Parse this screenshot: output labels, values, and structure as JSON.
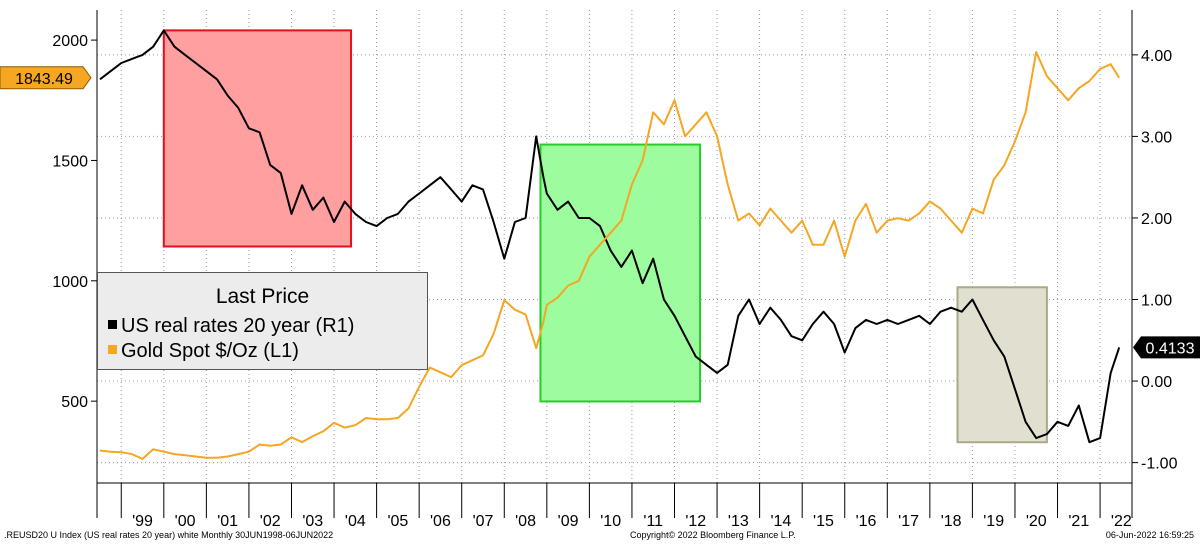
{
  "chart_data": {
    "type": "line",
    "series": [
      {
        "name": "US real rates 20 year",
        "axis": "right",
        "color": "#000000",
        "x": [
          1998.5,
          1998.75,
          1999.0,
          1999.25,
          1999.5,
          1999.75,
          2000.0,
          2000.25,
          2000.5,
          2000.75,
          2001.0,
          2001.25,
          2001.5,
          2001.75,
          2002.0,
          2002.25,
          2002.5,
          2002.75,
          2003.0,
          2003.25,
          2003.5,
          2003.75,
          2004.0,
          2004.25,
          2004.5,
          2004.75,
          2005.0,
          2005.25,
          2005.5,
          2005.75,
          2006.0,
          2006.25,
          2006.5,
          2006.75,
          2007.0,
          2007.25,
          2007.5,
          2007.75,
          2008.0,
          2008.25,
          2008.5,
          2008.75,
          2008.92,
          2009.0,
          2009.25,
          2009.5,
          2009.75,
          2010.0,
          2010.25,
          2010.5,
          2010.75,
          2011.0,
          2011.25,
          2011.5,
          2011.75,
          2012.0,
          2012.25,
          2012.5,
          2012.75,
          2013.0,
          2013.25,
          2013.5,
          2013.75,
          2014.0,
          2014.25,
          2014.5,
          2014.75,
          2015.0,
          2015.25,
          2015.5,
          2015.75,
          2016.0,
          2016.25,
          2016.5,
          2016.75,
          2017.0,
          2017.25,
          2017.5,
          2017.75,
          2018.0,
          2018.25,
          2018.5,
          2018.75,
          2019.0,
          2019.25,
          2019.5,
          2019.75,
          2020.0,
          2020.25,
          2020.5,
          2020.75,
          2021.0,
          2021.25,
          2021.5,
          2021.75,
          2022.0,
          2022.25,
          2022.45
        ],
        "values": [
          3.7,
          3.8,
          3.9,
          3.95,
          4.0,
          4.1,
          4.3,
          4.1,
          4.0,
          3.9,
          3.8,
          3.7,
          3.5,
          3.35,
          3.1,
          3.05,
          2.65,
          2.55,
          2.05,
          2.4,
          2.1,
          2.25,
          1.95,
          2.2,
          2.05,
          1.95,
          1.9,
          2.0,
          2.05,
          2.2,
          2.3,
          2.4,
          2.5,
          2.35,
          2.2,
          2.4,
          2.35,
          1.95,
          1.5,
          1.95,
          2.0,
          3.0,
          2.5,
          2.3,
          2.1,
          2.2,
          2.0,
          2.0,
          1.9,
          1.6,
          1.4,
          1.6,
          1.2,
          1.5,
          1.0,
          0.8,
          0.55,
          0.3,
          0.2,
          0.1,
          0.2,
          0.8,
          1.0,
          0.7,
          0.9,
          0.75,
          0.55,
          0.5,
          0.7,
          0.85,
          0.7,
          0.35,
          0.65,
          0.75,
          0.7,
          0.75,
          0.7,
          0.75,
          0.8,
          0.7,
          0.85,
          0.9,
          0.85,
          1.0,
          0.75,
          0.5,
          0.3,
          -0.1,
          -0.5,
          -0.7,
          -0.65,
          -0.5,
          -0.55,
          -0.3,
          -0.75,
          -0.7,
          0.1,
          0.4133
        ]
      },
      {
        "name": "Gold Spot $/Oz",
        "axis": "left",
        "color": "#f5a623",
        "x": [
          1998.5,
          1998.75,
          1999.0,
          1999.25,
          1999.5,
          1999.75,
          2000.0,
          2000.25,
          2000.5,
          2000.75,
          2001.0,
          2001.25,
          2001.5,
          2001.75,
          2002.0,
          2002.25,
          2002.5,
          2002.75,
          2003.0,
          2003.25,
          2003.5,
          2003.75,
          2004.0,
          2004.25,
          2004.5,
          2004.75,
          2005.0,
          2005.25,
          2005.5,
          2005.75,
          2006.0,
          2006.25,
          2006.5,
          2006.75,
          2007.0,
          2007.25,
          2007.5,
          2007.75,
          2008.0,
          2008.25,
          2008.5,
          2008.75,
          2008.92,
          2009.0,
          2009.25,
          2009.5,
          2009.75,
          2010.0,
          2010.25,
          2010.5,
          2010.75,
          2011.0,
          2011.25,
          2011.5,
          2011.75,
          2012.0,
          2012.25,
          2012.5,
          2012.75,
          2013.0,
          2013.25,
          2013.5,
          2013.75,
          2014.0,
          2014.25,
          2014.5,
          2014.75,
          2015.0,
          2015.25,
          2015.5,
          2015.75,
          2016.0,
          2016.25,
          2016.5,
          2016.75,
          2017.0,
          2017.25,
          2017.5,
          2017.75,
          2018.0,
          2018.25,
          2018.5,
          2018.75,
          2019.0,
          2019.25,
          2019.5,
          2019.75,
          2020.0,
          2020.25,
          2020.5,
          2020.75,
          2021.0,
          2021.25,
          2021.5,
          2021.75,
          2022.0,
          2022.25,
          2022.45
        ],
        "values": [
          295,
          290,
          288,
          280,
          260,
          300,
          290,
          280,
          275,
          270,
          265,
          265,
          270,
          280,
          290,
          320,
          315,
          320,
          350,
          330,
          355,
          375,
          410,
          390,
          400,
          430,
          425,
          425,
          430,
          470,
          560,
          640,
          620,
          600,
          650,
          670,
          690,
          780,
          920,
          880,
          860,
          720,
          830,
          900,
          930,
          980,
          1000,
          1100,
          1150,
          1200,
          1250,
          1400,
          1500,
          1700,
          1650,
          1750,
          1600,
          1650,
          1700,
          1600,
          1400,
          1250,
          1280,
          1230,
          1300,
          1250,
          1200,
          1250,
          1150,
          1150,
          1250,
          1100,
          1250,
          1320,
          1200,
          1250,
          1260,
          1250,
          1280,
          1330,
          1300,
          1250,
          1200,
          1300,
          1280,
          1420,
          1480,
          1580,
          1700,
          1950,
          1850,
          1800,
          1750,
          1800,
          1830,
          1880,
          1900,
          1843.49
        ]
      }
    ],
    "left_axis": {
      "ticks": [
        "2000",
        "1500",
        "1000",
        "500"
      ],
      "values": [
        2000,
        1500,
        1000,
        500
      ],
      "range": [
        160,
        2125
      ]
    },
    "right_axis": {
      "ticks": [
        "4.00",
        "3.00",
        "2.00",
        "1.00",
        "0.00",
        "-1.00"
      ],
      "values": [
        4,
        3,
        2,
        1,
        0,
        -1
      ],
      "range": [
        -1.25,
        4.55
      ]
    },
    "x_axis": {
      "ticks": [
        "'99",
        "'00",
        "'01",
        "'02",
        "'03",
        "'04",
        "'05",
        "'06",
        "'07",
        "'08",
        "'09",
        "'10",
        "'11",
        "'12",
        "'13",
        "'14",
        "'15",
        "'16",
        "'17",
        "'18",
        "'19",
        "'20",
        "'21",
        "'22"
      ],
      "range": [
        1998.43,
        2022.75
      ]
    },
    "grid": true,
    "badges": {
      "gold_last": "1843.49",
      "rates_last": "0.4133"
    },
    "highlight_boxes": [
      {
        "x0": 2000.0,
        "x1": 2004.4,
        "y0": 1.65,
        "y1": 4.3,
        "fill": "#ff9fa0",
        "stroke": "#e0101c"
      },
      {
        "x0": 2008.85,
        "x1": 2012.6,
        "y0": -0.25,
        "y1": 2.9,
        "fill": "#9dfc9d",
        "stroke": "#28cc28"
      },
      {
        "x0": 2018.65,
        "x1": 2020.75,
        "y0": -0.75,
        "y1": 1.15,
        "fill": "#e1e0d0",
        "stroke": "#a9a985"
      }
    ]
  },
  "legend": {
    "title": "Last Price",
    "items": [
      {
        "label": "US real rates 20 year  (R1)",
        "color": "#000000"
      },
      {
        "label": "Gold Spot $/Oz  (L1)",
        "color": "#f5a623"
      }
    ]
  },
  "footer": {
    "left": ".REUSD20 U Index (US real rates 20 year) white  Monthly 30JUN1998-06JUN2022",
    "center": "Copyright© 2022 Bloomberg Finance L.P.",
    "right": "06-Jun-2022 16:59:25"
  }
}
